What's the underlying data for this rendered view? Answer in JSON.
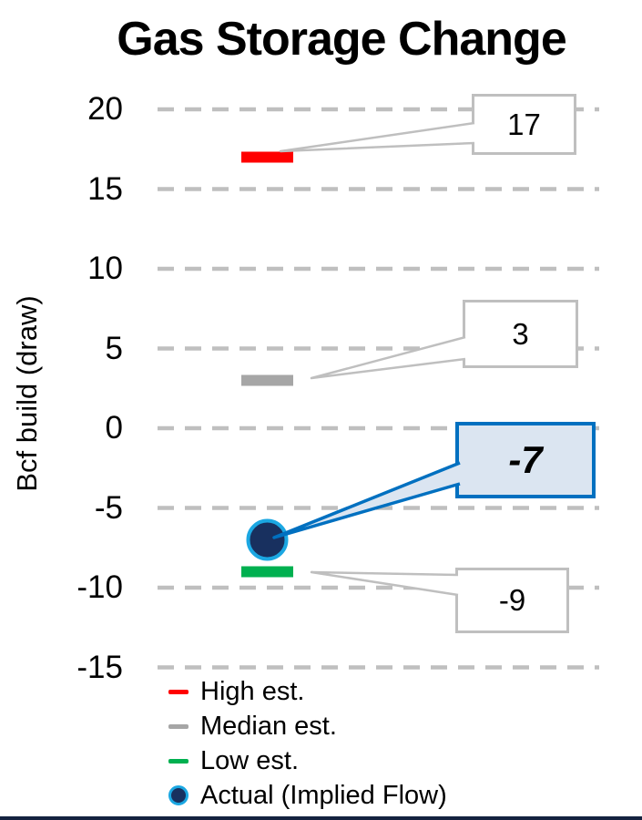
{
  "title": "Gas Storage Change",
  "chart_data": {
    "type": "scatter",
    "title": "Gas Storage Change",
    "ylabel": "Bcf build (draw)",
    "ylim": [
      -15,
      20
    ],
    "yticks": [
      20,
      15,
      10,
      5,
      0,
      -5,
      -10,
      -15
    ],
    "grid": "horizontal-dashed",
    "legend_position": "bottom-left",
    "series": [
      {
        "name": "High est.",
        "value": 17,
        "marker": "dash",
        "color": "#FF0000",
        "callout": {
          "label": "17",
          "style": "plain"
        }
      },
      {
        "name": "Median est.",
        "value": 3,
        "marker": "dash",
        "color": "#A6A6A6",
        "callout": {
          "label": "3",
          "style": "plain"
        }
      },
      {
        "name": "Low est.",
        "value": -9,
        "marker": "dash",
        "color": "#00B050",
        "callout": {
          "label": "-9",
          "style": "plain"
        }
      },
      {
        "name": "Actual (Implied Flow)",
        "value": -7,
        "marker": "circle",
        "color": "#18305F",
        "ring_color": "#1BA7E2",
        "callout": {
          "label": "-7",
          "style": "highlighted",
          "fill": "#DBE5F1",
          "border": "#0070C0"
        }
      }
    ]
  },
  "colors": {
    "gridline": "#BFBFBF",
    "callout_border": "#BFBFBF",
    "bottom_border": "#14233F",
    "text": "#000000",
    "background": "#FFFFFF"
  }
}
